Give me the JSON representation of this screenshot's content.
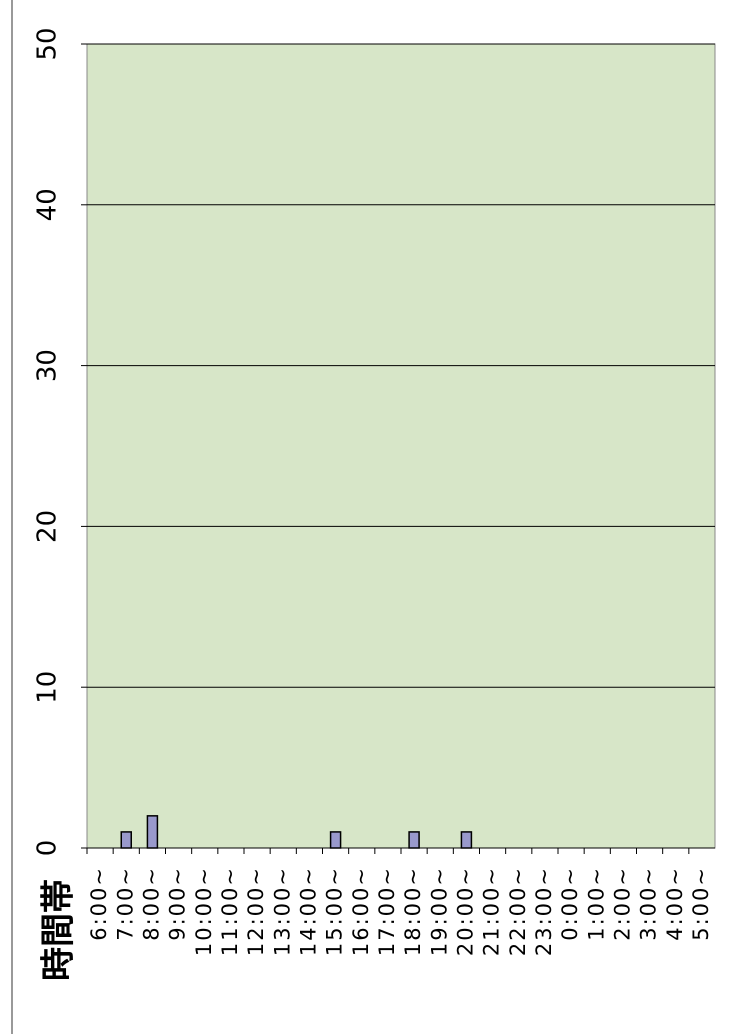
{
  "chart_data": {
    "type": "bar",
    "x_label": "時間帯",
    "categories": [
      "6:00~",
      "7:00~",
      "8:00~",
      "9:00~",
      "10:00~",
      "11:00~",
      "12:00~",
      "13:00~",
      "14:00~",
      "15:00~",
      "16:00~",
      "17:00~",
      "18:00~",
      "19:00~",
      "20:00~",
      "21:00~",
      "22:00~",
      "23:00~",
      "0:00~",
      "1:00~",
      "2:00~",
      "3:00~",
      "4:00~",
      "5:00~"
    ],
    "values": [
      0,
      1,
      2,
      0,
      0,
      0,
      0,
      0,
      0,
      1,
      0,
      0,
      1,
      0,
      1,
      0,
      0,
      0,
      0,
      0,
      0,
      0,
      0,
      0
    ],
    "color": "#9999cc",
    "ylim": [
      0,
      50
    ],
    "yticks": [
      0,
      10,
      20,
      30,
      40,
      50
    ],
    "grid": true
  }
}
